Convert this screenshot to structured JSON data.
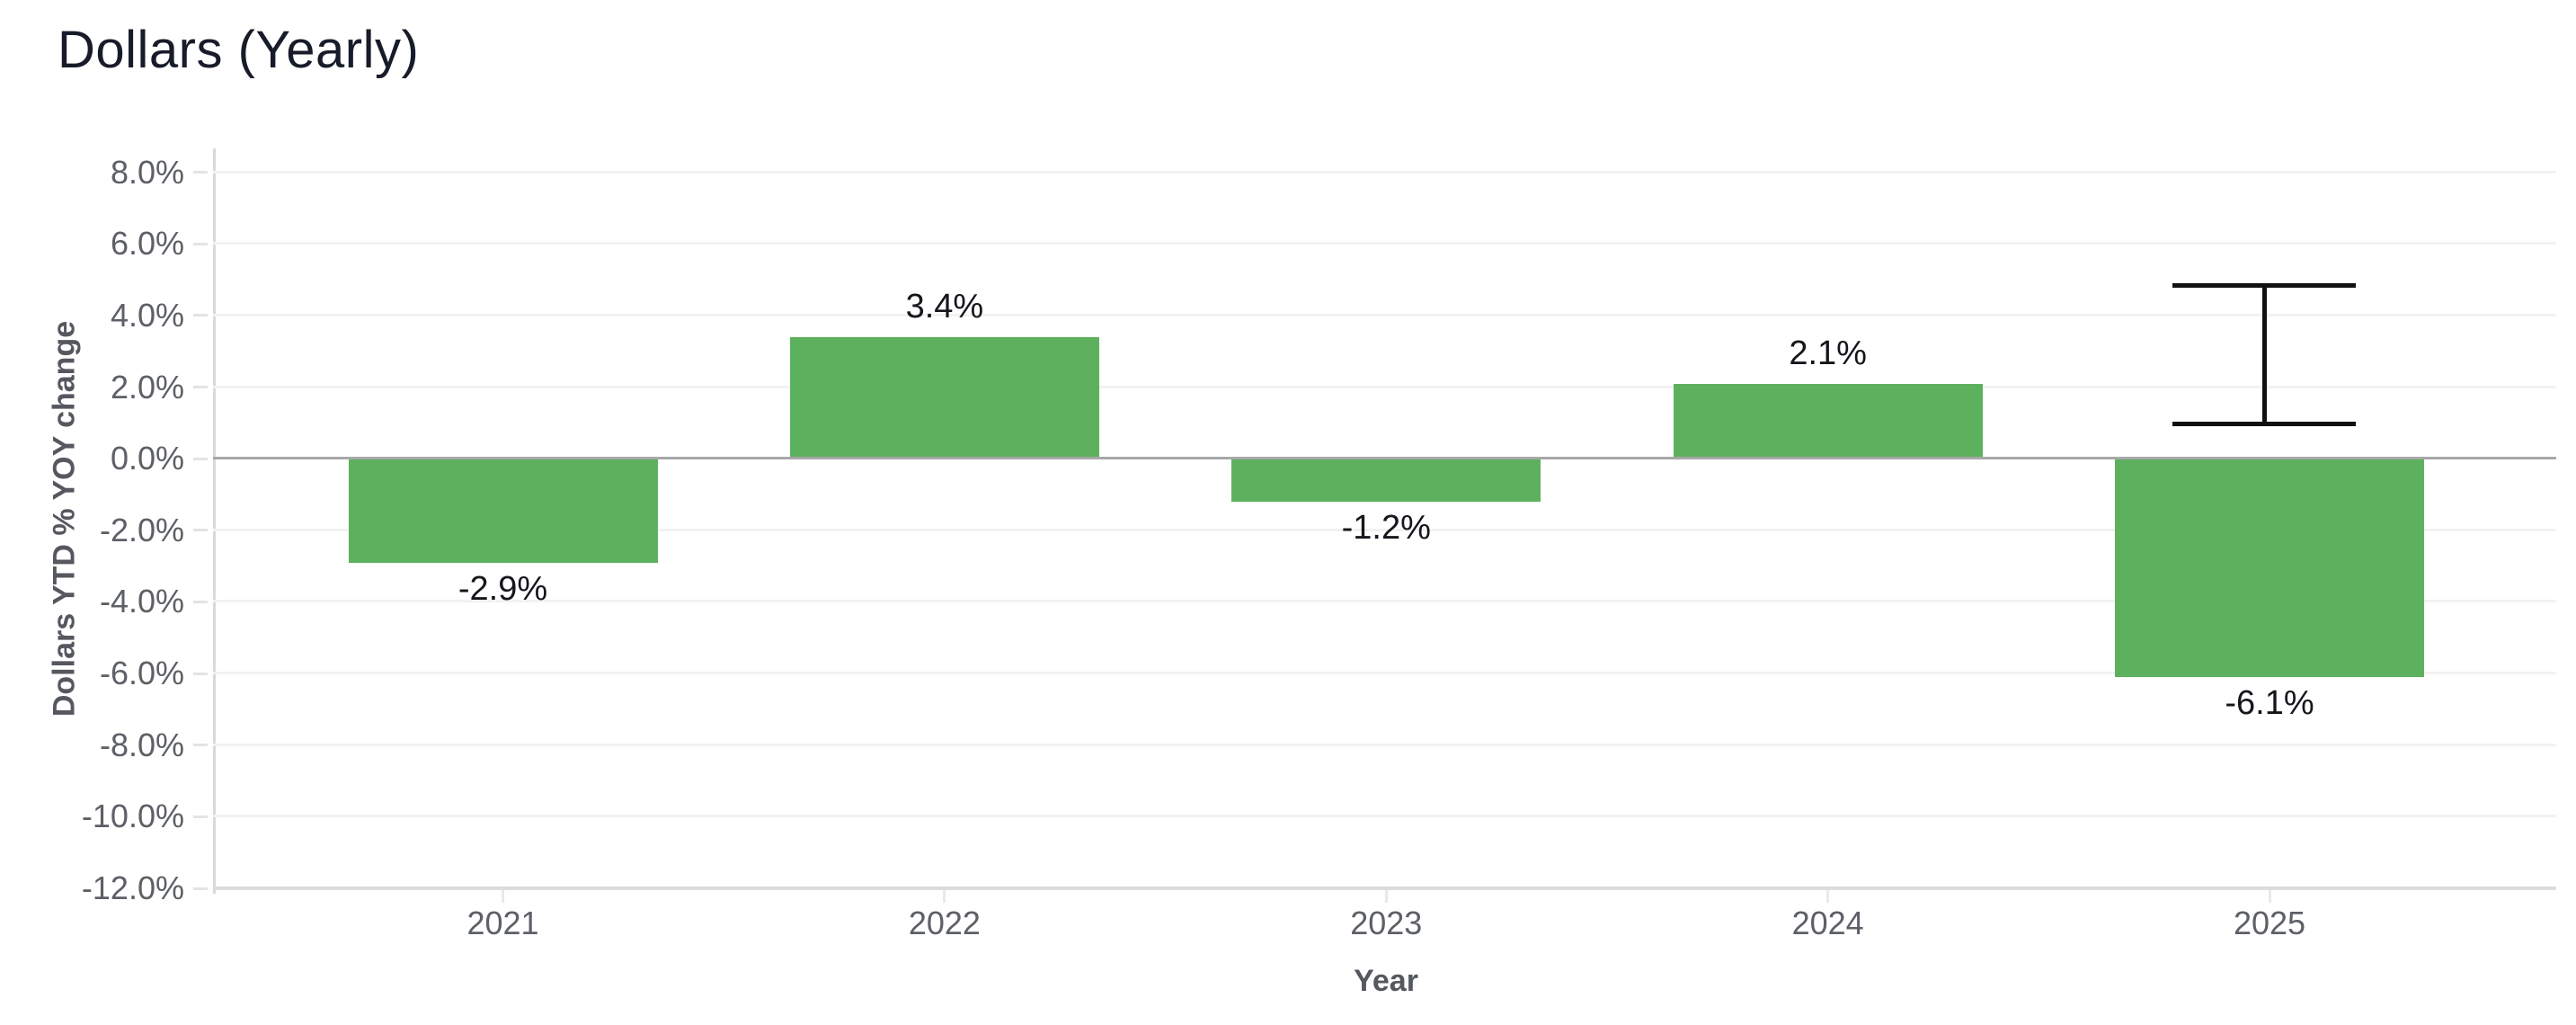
{
  "title": "Dollars (Yearly)",
  "colors": {
    "bar_green": "#5db15e",
    "error_bar_black": "#111111",
    "title_text": "#181b29",
    "tick_label_gray": "#5d6066",
    "axis_title_gray": "#55585e",
    "zero_line_gray": "#a8a8a8",
    "gridline_gray": "#f2f2f2"
  },
  "chart_data": {
    "type": "bar",
    "title": "Dollars (Yearly)",
    "xlabel": "Year",
    "ylabel": "Dollars YTD % YOY change",
    "categories": [
      "2021",
      "2022",
      "2023",
      "2024",
      "2025"
    ],
    "values": [
      -2.9,
      3.4,
      -1.2,
      2.1,
      -6.1
    ],
    "value_labels": [
      "-2.9%",
      "3.4%",
      "-1.2%",
      "2.1%",
      "-6.1%"
    ],
    "bar_color": "#5db15e",
    "grid": true,
    "legend": false,
    "ylim": [
      -12.05,
      8.67
    ],
    "yticks": {
      "values": [
        8,
        6,
        4,
        2,
        0,
        -2,
        -4,
        -6,
        -8,
        -10,
        -12
      ],
      "labels": [
        "8.0%",
        "6.0%",
        "4.0%",
        "2.0%",
        "0.0%",
        "-2.0%",
        "-4.0%",
        "-6.0%",
        "-8.0%",
        "-10.0%",
        "-12.0%"
      ]
    },
    "error_bar": {
      "category": "2025",
      "low": 0.9,
      "high": 4.9,
      "color": "#111111"
    }
  }
}
